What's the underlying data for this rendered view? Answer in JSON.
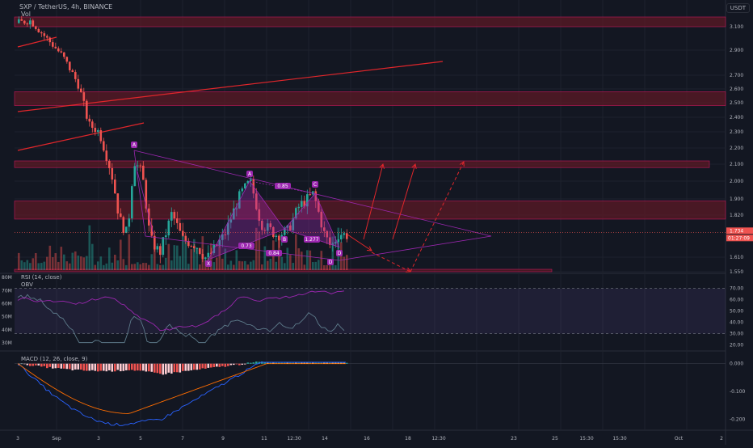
{
  "header": {
    "symbol_line": "SXP / TetherUS, 4h, BINANCE",
    "vol_label": "Vol",
    "currency_badge": "USDT"
  },
  "panes": {
    "rsi_label": "RSI (14, close)",
    "obv_label": "OBV",
    "macd_label": "MACD (12, 26, close, 9)"
  },
  "chart_data": [
    {
      "type": "candlestick",
      "pane": "price",
      "title": "SXP / TetherUS, 4h, BINANCE",
      "ylim": [
        1.55,
        3.2
      ],
      "price_axis_labels": [
        "3.100",
        "2.900",
        "2.700",
        "2.600",
        "2.500",
        "2.400",
        "2.300",
        "2.200",
        "2.100",
        "2.000",
        "1.900",
        "1.820",
        "1.610",
        "1.550"
      ],
      "price_axis_values": [
        3.1,
        2.9,
        2.7,
        2.6,
        2.5,
        2.4,
        2.3,
        2.2,
        2.1,
        2.0,
        1.9,
        1.82,
        1.61,
        1.55
      ],
      "current_price_label": "1.734",
      "countdown_label": "01:27:09",
      "x_axis_labels": [
        "3",
        "Sep",
        "3",
        "5",
        "7",
        "9",
        "11",
        "12:30",
        "14",
        "16",
        "18",
        "12:30",
        "23",
        "25",
        "15:30",
        "15:30",
        "Oct",
        "2"
      ],
      "harmonic_points": [
        {
          "label": "X",
          "price": 1.6
        },
        {
          "label": "A",
          "price": 2.0
        },
        {
          "label": "B",
          "price": 1.75
        },
        {
          "label": "C",
          "price": 1.93
        },
        {
          "label": "D",
          "price": 1.66
        }
      ],
      "ratio_labels": [
        "0.85",
        "0.73",
        "1.277",
        "0.84"
      ],
      "point_labels_top": [
        "A",
        "A",
        "C"
      ],
      "point_labels_bottom": [
        "X",
        "B",
        "D",
        "D"
      ],
      "resistance_zones": [
        {
          "from": 3.1,
          "to": 3.18
        },
        {
          "from": 2.48,
          "to": 2.58
        },
        {
          "from": 2.08,
          "to": 2.12
        },
        {
          "from": 1.8,
          "to": 1.89
        },
        {
          "from": 1.55,
          "to": 1.56
        }
      ],
      "colors": {
        "up": "#26a69a",
        "down": "#ef5350",
        "pattern": "#9c27b0",
        "zone": "#5c1a26",
        "trend": "#e0262b"
      }
    },
    {
      "type": "line",
      "pane": "rsi",
      "title": "RSI (14, close)",
      "series": [
        {
          "name": "RSI (14, close)"
        },
        {
          "name": "OBV"
        }
      ],
      "y_axis_labels": [
        "70.00",
        "60.00",
        "50.00",
        "40.00",
        "30.00",
        "20.00"
      ],
      "y_axis_values": [
        70,
        60,
        50,
        40,
        30,
        20
      ],
      "left_axis_labels": [
        "80M",
        "70M",
        "60M",
        "50M",
        "40M",
        "30M"
      ],
      "left_axis_values": [
        80,
        70,
        60,
        50,
        40,
        30
      ]
    },
    {
      "type": "histogram",
      "pane": "macd",
      "title": "MACD (12, 26, close, 9)",
      "y_axis_labels": [
        "0.000",
        "-0.100",
        "-0.200"
      ],
      "y_axis_values": [
        0,
        -0.1,
        -0.2
      ]
    }
  ]
}
